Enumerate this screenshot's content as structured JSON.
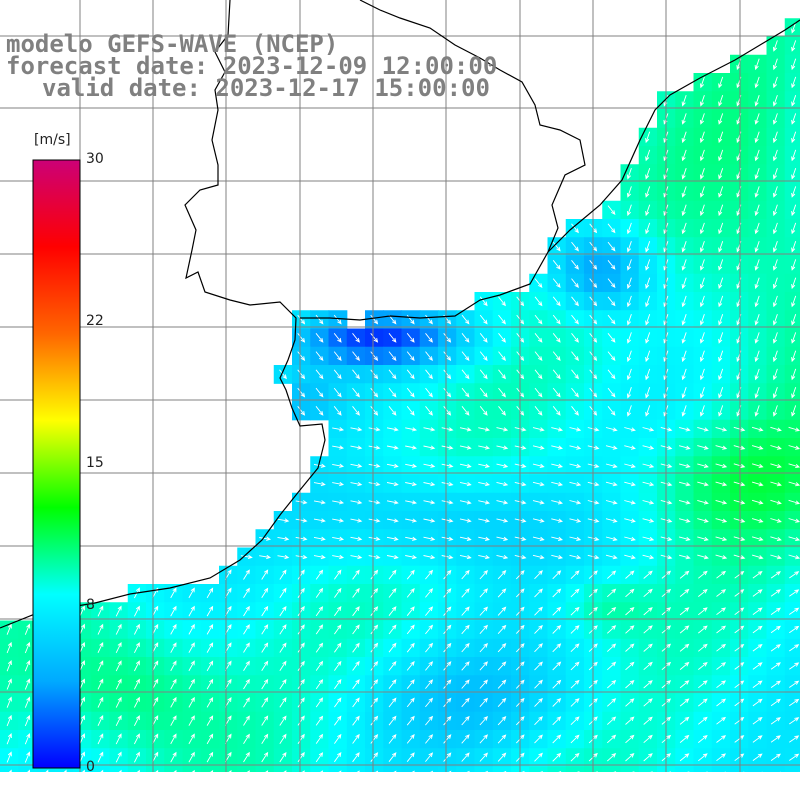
{
  "title": {
    "line1": "modelo GEFS-WAVE (NCEP)",
    "line2": "forecast date: 2023-12-09 12:00:00",
    "line3": "valid date: 2023-12-17 15:00:00"
  },
  "colorbar": {
    "unit": "[m/s]",
    "range": [
      0,
      30
    ],
    "ticks": [
      {
        "value": 30,
        "label": "30"
      },
      {
        "value": 22,
        "label": "22"
      },
      {
        "value": 15,
        "label": "15"
      },
      {
        "value": 8,
        "label": "8"
      },
      {
        "value": 0,
        "label": "0"
      }
    ],
    "colors": [
      "#0000ff",
      "#00aaff",
      "#00ffff",
      "#00ff00",
      "#ffff00",
      "#ff6600",
      "#ff0000",
      "#cc0077"
    ]
  },
  "map": {
    "variable": "wind speed and direction",
    "land_color": "#ffffff",
    "coast_color": "#000000",
    "grid_color": "#808080"
  }
}
